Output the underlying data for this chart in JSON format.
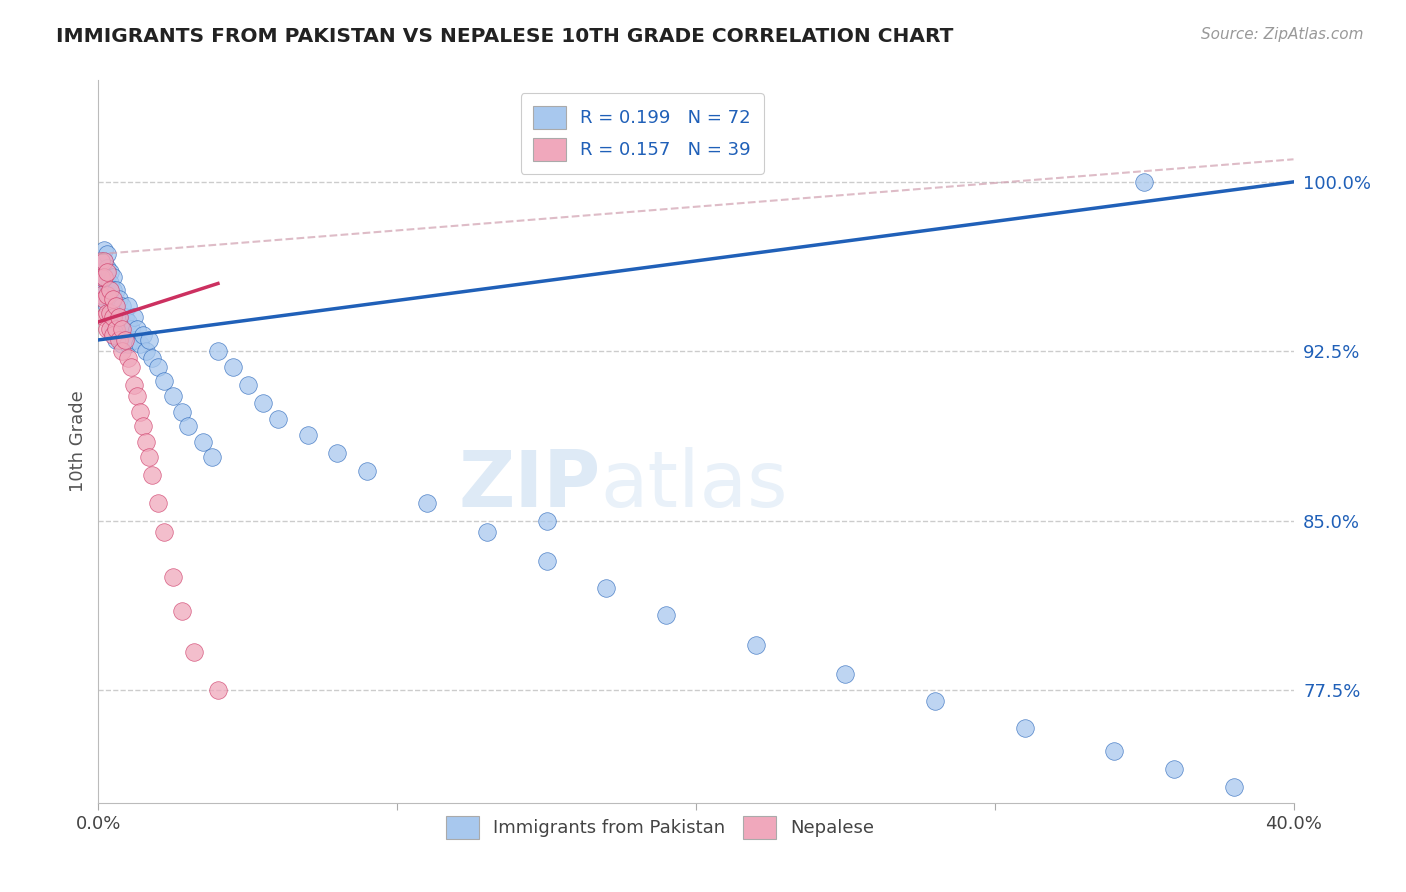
{
  "title": "IMMIGRANTS FROM PAKISTAN VS NEPALESE 10TH GRADE CORRELATION CHART",
  "source": "Source: ZipAtlas.com",
  "ylabel": "10th Grade",
  "y_ticks": [
    0.775,
    0.85,
    0.925,
    1.0
  ],
  "y_tick_labels": [
    "77.5%",
    "85.0%",
    "92.5%",
    "100.0%"
  ],
  "x_range": [
    0.0,
    0.4
  ],
  "y_range": [
    0.725,
    1.045
  ],
  "legend_r1": "R = 0.199",
  "legend_n1": "N = 72",
  "legend_r2": "R = 0.157",
  "legend_n2": "N = 39",
  "legend_label1": "Immigrants from Pakistan",
  "legend_label2": "Nepalese",
  "color_blue": "#A8C8EE",
  "color_pink": "#F0A8BC",
  "line_blue": "#2060B8",
  "line_pink": "#CC3060",
  "watermark_zip": "ZIP",
  "watermark_atlas": "atlas",
  "pakistan_x": [
    0.001,
    0.001,
    0.002,
    0.002,
    0.002,
    0.002,
    0.003,
    0.003,
    0.003,
    0.003,
    0.003,
    0.004,
    0.004,
    0.004,
    0.004,
    0.005,
    0.005,
    0.005,
    0.005,
    0.006,
    0.006,
    0.006,
    0.006,
    0.007,
    0.007,
    0.007,
    0.008,
    0.008,
    0.008,
    0.009,
    0.009,
    0.01,
    0.01,
    0.01,
    0.011,
    0.012,
    0.012,
    0.013,
    0.014,
    0.015,
    0.016,
    0.017,
    0.018,
    0.02,
    0.022,
    0.025,
    0.028,
    0.03,
    0.035,
    0.038,
    0.04,
    0.045,
    0.05,
    0.055,
    0.06,
    0.07,
    0.08,
    0.09,
    0.11,
    0.13,
    0.15,
    0.17,
    0.19,
    0.22,
    0.25,
    0.28,
    0.31,
    0.34,
    0.36,
    0.38,
    0.15,
    0.35
  ],
  "pakistan_y": [
    0.96,
    0.955,
    0.97,
    0.965,
    0.958,
    0.95,
    0.968,
    0.962,
    0.955,
    0.948,
    0.945,
    0.96,
    0.955,
    0.948,
    0.94,
    0.958,
    0.952,
    0.945,
    0.935,
    0.952,
    0.945,
    0.938,
    0.93,
    0.948,
    0.94,
    0.932,
    0.945,
    0.938,
    0.928,
    0.94,
    0.93,
    0.945,
    0.938,
    0.928,
    0.935,
    0.94,
    0.93,
    0.935,
    0.928,
    0.932,
    0.925,
    0.93,
    0.922,
    0.918,
    0.912,
    0.905,
    0.898,
    0.892,
    0.885,
    0.878,
    0.925,
    0.918,
    0.91,
    0.902,
    0.895,
    0.888,
    0.88,
    0.872,
    0.858,
    0.845,
    0.832,
    0.82,
    0.808,
    0.795,
    0.782,
    0.77,
    0.758,
    0.748,
    0.74,
    0.732,
    0.85,
    1.0
  ],
  "nepal_x": [
    0.001,
    0.001,
    0.001,
    0.002,
    0.002,
    0.002,
    0.002,
    0.003,
    0.003,
    0.003,
    0.003,
    0.004,
    0.004,
    0.004,
    0.005,
    0.005,
    0.005,
    0.006,
    0.006,
    0.007,
    0.007,
    0.008,
    0.008,
    0.009,
    0.01,
    0.011,
    0.012,
    0.013,
    0.014,
    0.015,
    0.016,
    0.017,
    0.018,
    0.02,
    0.022,
    0.025,
    0.028,
    0.032,
    0.04
  ],
  "nepal_y": [
    0.965,
    0.958,
    0.95,
    0.965,
    0.958,
    0.948,
    0.94,
    0.96,
    0.95,
    0.942,
    0.935,
    0.952,
    0.942,
    0.935,
    0.948,
    0.94,
    0.932,
    0.945,
    0.935,
    0.94,
    0.93,
    0.935,
    0.925,
    0.93,
    0.922,
    0.918,
    0.91,
    0.905,
    0.898,
    0.892,
    0.885,
    0.878,
    0.87,
    0.858,
    0.845,
    0.825,
    0.81,
    0.792,
    0.775
  ],
  "blue_line_x": [
    0.0,
    0.4
  ],
  "blue_line_y": [
    0.93,
    1.0
  ],
  "pink_line_x": [
    0.0,
    0.04
  ],
  "pink_line_y": [
    0.938,
    0.955
  ],
  "dash_line_x": [
    0.0,
    0.4
  ],
  "dash_line_y": [
    0.968,
    1.01
  ]
}
